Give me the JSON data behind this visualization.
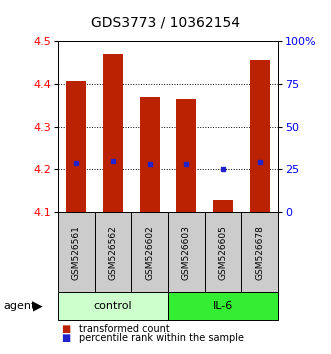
{
  "title": "GDS3773 / 10362154",
  "samples": [
    "GSM526561",
    "GSM526562",
    "GSM526602",
    "GSM526603",
    "GSM526605",
    "GSM526678"
  ],
  "bar_bottom": 4.1,
  "bar_tops": [
    4.405,
    4.47,
    4.37,
    4.365,
    4.13,
    4.455
  ],
  "percentile_values": [
    4.215,
    4.22,
    4.213,
    4.213,
    4.202,
    4.218
  ],
  "ylim": [
    4.1,
    4.5
  ],
  "yticks": [
    4.1,
    4.2,
    4.3,
    4.4,
    4.5
  ],
  "right_ytick_labels": [
    "0",
    "25",
    "50",
    "75",
    "100%"
  ],
  "right_ytick_pct": [
    0,
    25,
    50,
    75,
    100
  ],
  "bar_color": "#bb2200",
  "percentile_color": "#2222cc",
  "control_color": "#ccffcc",
  "il6_color": "#33ee33",
  "sample_box_color": "#cccccc",
  "title_fontsize": 10,
  "tick_fontsize": 8,
  "label_fontsize": 6.5,
  "group_fontsize": 8,
  "legend_fontsize": 7,
  "bar_width": 0.55,
  "groups_info": [
    {
      "label": "control",
      "start": 0,
      "end": 3
    },
    {
      "label": "IL-6",
      "start": 3,
      "end": 6
    }
  ]
}
